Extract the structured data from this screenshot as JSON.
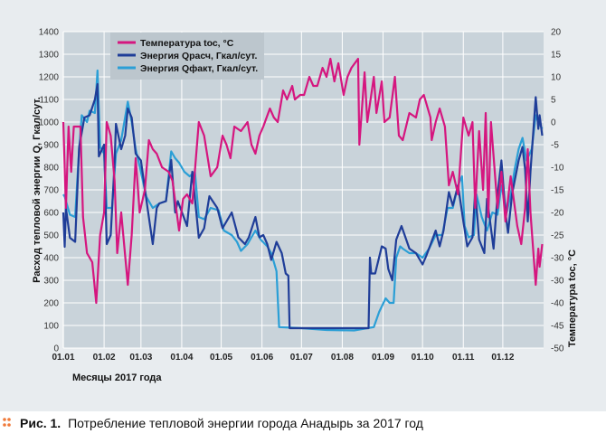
{
  "chart_data": {
    "type": "line",
    "title": "",
    "xlabel": "Месяцы 2017 года",
    "ylabel_left": "Расход тепловой энергии Q, Гкал/сут.",
    "ylabel_right": "Температура tос, °C",
    "x_ticks": [
      "01.01",
      "01.02",
      "01.03",
      "01.04",
      "01.05",
      "01.06",
      "01.07",
      "01.08",
      "01.09",
      "01.10",
      "01.11",
      "01.12"
    ],
    "y_left_ticks": [
      "0",
      "100",
      "200",
      "300",
      "400",
      "500",
      "600",
      "700",
      "800",
      "900",
      "1000",
      "1100",
      "1200",
      "1300",
      "1400"
    ],
    "y_right_ticks": [
      "-50",
      "-45",
      "-40",
      "-30",
      "-30",
      "-25",
      "-20",
      "-15",
      "-10",
      "-5",
      "0",
      "5",
      "10",
      "15",
      "20"
    ],
    "ylim_left": [
      0,
      1400
    ],
    "ylim_right": [
      -50,
      20
    ],
    "grid": true,
    "legend_position": "top-left",
    "series": [
      {
        "name": "Температура tос, °C",
        "axis": "right",
        "color": "#d5167f",
        "points": [
          [
            "01.01",
            0
          ],
          [
            "03.01",
            -19
          ],
          [
            "05.01",
            -1
          ],
          [
            "07.01",
            -11
          ],
          [
            "09.01",
            -1
          ],
          [
            "14.01",
            -1
          ],
          [
            "16.01",
            -21
          ],
          [
            "19.01",
            -29
          ],
          [
            "23.01",
            -31
          ],
          [
            "26.01",
            -40
          ],
          [
            "29.01",
            -25
          ],
          [
            "01.02",
            -20
          ],
          [
            "03.02",
            0
          ],
          [
            "06.02",
            -3
          ],
          [
            "09.02",
            -13
          ],
          [
            "11.02",
            -29
          ],
          [
            "14.02",
            -20
          ],
          [
            "19.02",
            -36
          ],
          [
            "22.02",
            -25
          ],
          [
            "25.02",
            -8
          ],
          [
            "28.02",
            -20
          ],
          [
            "04.03",
            -15
          ],
          [
            "07.03",
            -4
          ],
          [
            "10.03",
            -6
          ],
          [
            "13.03",
            -7
          ],
          [
            "17.03",
            -10
          ],
          [
            "22.03",
            -11
          ],
          [
            "25.03",
            -13
          ],
          [
            "30.03",
            -24
          ],
          [
            "02.04",
            -17
          ],
          [
            "05.04",
            -16
          ],
          [
            "09.04",
            -18
          ],
          [
            "14.04",
            0
          ],
          [
            "18.04",
            -3
          ],
          [
            "23.04",
            -12
          ],
          [
            "28.04",
            -10
          ],
          [
            "02.05",
            -3
          ],
          [
            "05.05",
            -5
          ],
          [
            "08.05",
            -8
          ],
          [
            "11.05",
            -1
          ],
          [
            "16.05",
            -2
          ],
          [
            "21.05",
            0
          ],
          [
            "24.05",
            -5
          ],
          [
            "27.05",
            -7
          ],
          [
            "30.05",
            -3
          ],
          [
            "02.06",
            -1
          ],
          [
            "07.06",
            3
          ],
          [
            "10.06",
            1
          ],
          [
            "13.06",
            0
          ],
          [
            "17.06",
            7
          ],
          [
            "20.06",
            5
          ],
          [
            "24.06",
            8
          ],
          [
            "26.06",
            5
          ],
          [
            "30.06",
            6
          ],
          [
            "03.07",
            6
          ],
          [
            "07.07",
            10
          ],
          [
            "10.07",
            8
          ],
          [
            "13.07",
            8
          ],
          [
            "17.07",
            12
          ],
          [
            "20.07",
            10
          ],
          [
            "23.07",
            14
          ],
          [
            "26.07",
            9
          ],
          [
            "29.07",
            13
          ],
          [
            "02.08",
            6
          ],
          [
            "05.08",
            10
          ],
          [
            "08.08",
            12
          ],
          [
            "13.08",
            14
          ],
          [
            "14.08",
            -5
          ],
          [
            "18.08",
            11
          ],
          [
            "20.08",
            0
          ],
          [
            "25.08",
            10
          ],
          [
            "27.08",
            2
          ],
          [
            "31.08",
            9
          ],
          [
            "02.09",
            0
          ],
          [
            "06.09",
            1
          ],
          [
            "10.09",
            10
          ],
          [
            "13.09",
            -3
          ],
          [
            "16.09",
            -4
          ],
          [
            "21.09",
            2
          ],
          [
            "26.09",
            1
          ],
          [
            "29.09",
            5
          ],
          [
            "02.10",
            6
          ],
          [
            "07.10",
            1
          ],
          [
            "08.10",
            -4
          ],
          [
            "11.10",
            0
          ],
          [
            "14.10",
            3
          ],
          [
            "18.10",
            -1
          ],
          [
            "21.10",
            -14
          ],
          [
            "24.10",
            -11
          ],
          [
            "28.10",
            -16
          ],
          [
            "01.11",
            1
          ],
          [
            "05.11",
            -3
          ],
          [
            "08.11",
            0
          ],
          [
            "10.11",
            -19
          ],
          [
            "13.11",
            -2
          ],
          [
            "16.11",
            -15
          ],
          [
            "18.11",
            2
          ],
          [
            "20.11",
            -21
          ],
          [
            "22.11",
            0
          ],
          [
            "27.11",
            -19
          ],
          [
            "30.11",
            -11
          ],
          [
            "03.12",
            -22
          ],
          [
            "07.12",
            -12
          ],
          [
            "12.12",
            -23
          ],
          [
            "15.12",
            -27
          ],
          [
            "18.12",
            -19
          ],
          [
            "20.12",
            -6
          ],
          [
            "22.12",
            -20
          ],
          [
            "26.12",
            -36
          ],
          [
            "28.12",
            -28
          ],
          [
            "29.12",
            -32
          ],
          [
            "31.12",
            -27
          ]
        ]
      },
      {
        "name": "Энергия Qрасч, Гкал/сут.",
        "axis": "left",
        "color": "#1f3d98",
        "points": [
          [
            "01.01",
            600
          ],
          [
            "02.01",
            448
          ],
          [
            "03.01",
            620
          ],
          [
            "06.01",
            488
          ],
          [
            "10.01",
            470
          ],
          [
            "13.01",
            888
          ],
          [
            "17.01",
            1020
          ],
          [
            "21.01",
            1030
          ],
          [
            "25.01",
            1100
          ],
          [
            "27.01",
            1168
          ],
          [
            "28.01",
            848
          ],
          [
            "01.02",
            900
          ],
          [
            "03.02",
            460
          ],
          [
            "06.02",
            500
          ],
          [
            "09.02",
            820
          ],
          [
            "10.02",
            992
          ],
          [
            "14.02",
            880
          ],
          [
            "17.02",
            940
          ],
          [
            "19.02",
            1060
          ],
          [
            "22.02",
            1020
          ],
          [
            "25.02",
            860
          ],
          [
            "01.03",
            830
          ],
          [
            "06.03",
            620
          ],
          [
            "10.03",
            460
          ],
          [
            "13.03",
            620
          ],
          [
            "15.03",
            640
          ],
          [
            "20.03",
            650
          ],
          [
            "24.03",
            832
          ],
          [
            "27.03",
            600
          ],
          [
            "29.03",
            650
          ],
          [
            "05.04",
            540
          ],
          [
            "09.04",
            780
          ],
          [
            "14.04",
            488
          ],
          [
            "18.04",
            530
          ],
          [
            "22.04",
            672
          ],
          [
            "28.04",
            620
          ],
          [
            "02.05",
            530
          ],
          [
            "09.05",
            600
          ],
          [
            "14.05",
            490
          ],
          [
            "19.05",
            460
          ],
          [
            "22.05",
            490
          ],
          [
            "27.05",
            580
          ],
          [
            "30.05",
            490
          ],
          [
            "02.06",
            500
          ],
          [
            "05.06",
            460
          ],
          [
            "08.06",
            390
          ],
          [
            "12.06",
            470
          ],
          [
            "16.06",
            420
          ],
          [
            "19.06",
            330
          ],
          [
            "21.06",
            320
          ],
          [
            "22.06",
            88
          ],
          [
            "21.08",
            88
          ],
          [
            "22.08",
            400
          ],
          [
            "23.08",
            330
          ],
          [
            "26.08",
            330
          ],
          [
            "31.08",
            450
          ],
          [
            "03.09",
            440
          ],
          [
            "05.09",
            350
          ],
          [
            "08.09",
            300
          ],
          [
            "11.09",
            480
          ],
          [
            "15.09",
            540
          ],
          [
            "21.09",
            440
          ],
          [
            "26.09",
            420
          ],
          [
            "01.10",
            370
          ],
          [
            "04.10",
            410
          ],
          [
            "11.10",
            520
          ],
          [
            "14.10",
            450
          ],
          [
            "17.10",
            520
          ],
          [
            "21.10",
            690
          ],
          [
            "24.10",
            630
          ],
          [
            "28.10",
            720
          ],
          [
            "01.11",
            560
          ],
          [
            "04.11",
            450
          ],
          [
            "08.11",
            490
          ],
          [
            "10.11",
            700
          ],
          [
            "13.11",
            480
          ],
          [
            "17.11",
            420
          ],
          [
            "19.11",
            660
          ],
          [
            "20.11",
            620
          ],
          [
            "24.11",
            440
          ],
          [
            "27.11",
            680
          ],
          [
            "30.11",
            830
          ],
          [
            "03.12",
            600
          ],
          [
            "05.12",
            510
          ],
          [
            "08.12",
            680
          ],
          [
            "13.12",
            830
          ],
          [
            "16.12",
            890
          ],
          [
            "18.12",
            790
          ],
          [
            "20.12",
            560
          ],
          [
            "22.12",
            780
          ],
          [
            "26.12",
            1110
          ],
          [
            "28.12",
            970
          ],
          [
            "29.12",
            1030
          ],
          [
            "31.12",
            940
          ]
        ]
      },
      {
        "name": "Энергия Qфакт, Гкал/сут.",
        "axis": "left",
        "color": "#2b9fd6",
        "points": [
          [
            "01.01",
            680
          ],
          [
            "02.01",
            670
          ],
          [
            "06.01",
            590
          ],
          [
            "10.01",
            580
          ],
          [
            "13.01",
            880
          ],
          [
            "15.01",
            1030
          ],
          [
            "19.01",
            1000
          ],
          [
            "21.01",
            1050
          ],
          [
            "25.01",
            1040
          ],
          [
            "27.01",
            1228
          ],
          [
            "29.01",
            890
          ],
          [
            "01.02",
            860
          ],
          [
            "03.02",
            620
          ],
          [
            "07.02",
            620
          ],
          [
            "10.02",
            860
          ],
          [
            "14.02",
            920
          ],
          [
            "19.02",
            1090
          ],
          [
            "22.02",
            1000
          ],
          [
            "25.02",
            880
          ],
          [
            "01.03",
            780
          ],
          [
            "05.03",
            670
          ],
          [
            "10.03",
            620
          ],
          [
            "15.03",
            640
          ],
          [
            "20.03",
            650
          ],
          [
            "24.03",
            870
          ],
          [
            "27.03",
            840
          ],
          [
            "30.03",
            820
          ],
          [
            "03.04",
            780
          ],
          [
            "07.04",
            760
          ],
          [
            "11.04",
            780
          ],
          [
            "14.04",
            580
          ],
          [
            "18.04",
            570
          ],
          [
            "23.04",
            620
          ],
          [
            "29.04",
            610
          ],
          [
            "03.05",
            520
          ],
          [
            "09.05",
            500
          ],
          [
            "13.05",
            470
          ],
          [
            "16.05",
            430
          ],
          [
            "21.05",
            460
          ],
          [
            "24.05",
            490
          ],
          [
            "27.05",
            520
          ],
          [
            "31.05",
            480
          ],
          [
            "05.06",
            450
          ],
          [
            "08.06",
            420
          ],
          [
            "12.06",
            340
          ],
          [
            "14.06",
            93
          ],
          [
            "01.07",
            88
          ],
          [
            "20.07",
            80
          ],
          [
            "10.08",
            78
          ],
          [
            "25.08",
            93
          ],
          [
            "29.08",
            160
          ],
          [
            "03.09",
            220
          ],
          [
            "06.09",
            200
          ],
          [
            "09.09",
            200
          ],
          [
            "11.09",
            400
          ],
          [
            "14.09",
            450
          ],
          [
            "16.09",
            440
          ],
          [
            "21.09",
            420
          ],
          [
            "26.09",
            420
          ],
          [
            "01.10",
            400
          ],
          [
            "06.10",
            440
          ],
          [
            "11.10",
            500
          ],
          [
            "16.10",
            500
          ],
          [
            "20.10",
            620
          ],
          [
            "24.10",
            620
          ],
          [
            "28.10",
            720
          ],
          [
            "31.10",
            760
          ],
          [
            "02.11",
            540
          ],
          [
            "05.11",
            490
          ],
          [
            "09.11",
            500
          ],
          [
            "11.11",
            680
          ],
          [
            "15.11",
            580
          ],
          [
            "19.11",
            520
          ],
          [
            "23.11",
            600
          ],
          [
            "27.11",
            590
          ],
          [
            "30.11",
            720
          ],
          [
            "04.12",
            600
          ],
          [
            "07.12",
            680
          ],
          [
            "10.12",
            790
          ],
          [
            "13.12",
            880
          ],
          [
            "16.12",
            930
          ],
          [
            "19.12",
            830
          ],
          [
            "23.12",
            880
          ],
          [
            "26.12",
            1030
          ],
          [
            "28.12",
            1000
          ],
          [
            "31.12",
            970
          ]
        ]
      }
    ]
  },
  "legend": {
    "temp_label": "Температура tос, °C",
    "qcalc_label": "Энергия Qрасч, Гкал/сут.",
    "qfact_label": "Энергия Qфакт, Гкал/сут."
  },
  "caption": {
    "number": "Рис. 1.",
    "text": "Потребление тепловой энергии города Анадырь за 2017 год",
    "bullet_color": "#f07a3a"
  },
  "colors": {
    "plot_bg": "#c9d3da",
    "panel_bg": "#e8ecef"
  }
}
